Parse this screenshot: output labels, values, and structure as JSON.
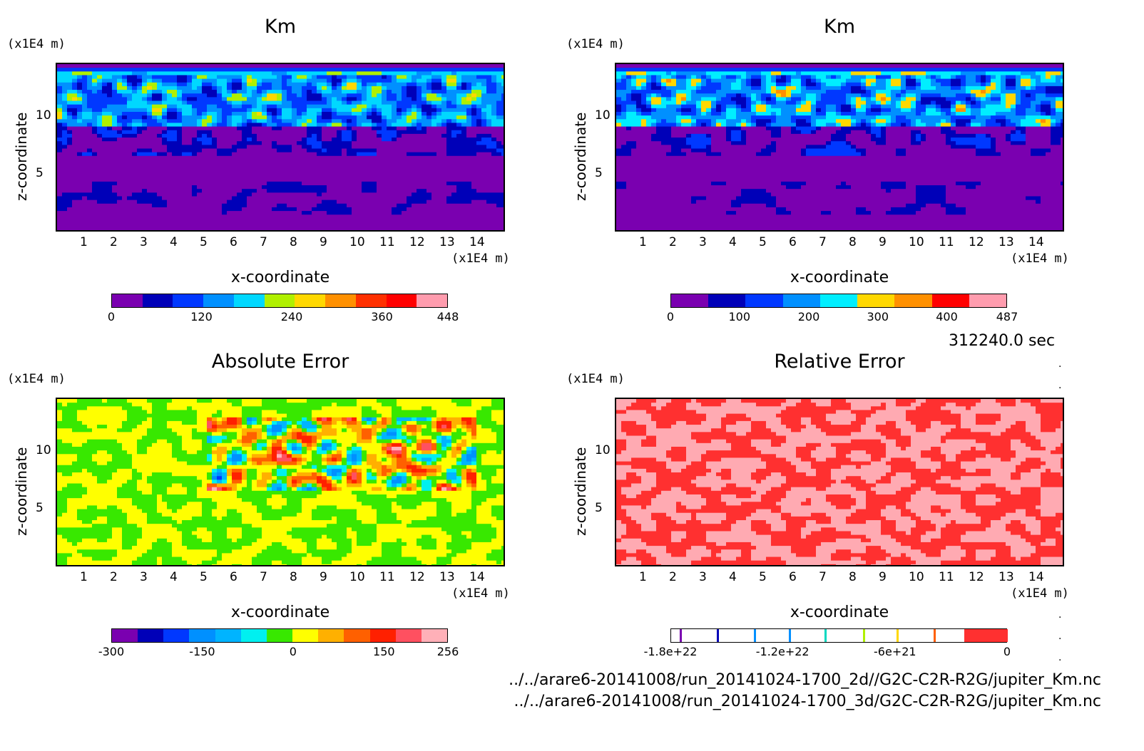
{
  "chart_data": [
    {
      "type": "heatmap",
      "title": "Km",
      "xlabel": "x-coordinate",
      "ylabel": "z-coordinate",
      "x_unit": "(x1E4 m)",
      "y_unit": "(x1E4 m)",
      "xticks": [
        "1",
        "2",
        "3",
        "4",
        "5",
        "6",
        "7",
        "8",
        "9",
        "10",
        "11",
        "12",
        "13",
        "14"
      ],
      "yticks": [
        "5",
        "10"
      ],
      "xlim": [
        0,
        15
      ],
      "ylim": [
        0,
        14.5
      ],
      "colorbar": {
        "colors": [
          "#7a00b0",
          "#0000b8",
          "#0038ff",
          "#0090ff",
          "#00d8ff",
          "#b0f000",
          "#ffd800",
          "#ff9000",
          "#ff3000",
          "#ff0000",
          "#ff9cae"
        ],
        "labels": [
          "0",
          "120",
          "240",
          "360",
          "448"
        ],
        "label_pos": [
          0,
          0.268,
          0.536,
          0.804,
          1.0
        ]
      },
      "palette": "km"
    },
    {
      "type": "heatmap",
      "title": "Km",
      "xlabel": "x-coordinate",
      "ylabel": "z-coordinate",
      "x_unit": "(x1E4 m)",
      "y_unit": "(x1E4 m)",
      "xticks": [
        "1",
        "2",
        "3",
        "4",
        "5",
        "6",
        "7",
        "8",
        "9",
        "10",
        "11",
        "12",
        "13",
        "14"
      ],
      "yticks": [
        "5",
        "10"
      ],
      "xlim": [
        0,
        15
      ],
      "ylim": [
        0,
        14.5
      ],
      "colorbar": {
        "colors": [
          "#7a00b0",
          "#0000b8",
          "#0038ff",
          "#0090ff",
          "#00eeff",
          "#ffd800",
          "#ff9000",
          "#ff0000",
          "#ff9cae"
        ],
        "labels": [
          "0",
          "100",
          "200",
          "300",
          "400",
          "487"
        ],
        "label_pos": [
          0,
          0.205,
          0.411,
          0.616,
          0.821,
          1.0
        ]
      },
      "palette": "km"
    },
    {
      "type": "heatmap",
      "title": "Absolute Error",
      "xlabel": "x-coordinate",
      "ylabel": "z-coordinate",
      "x_unit": "(x1E4 m)",
      "y_unit": "(x1E4 m)",
      "xticks": [
        "1",
        "2",
        "3",
        "4",
        "5",
        "6",
        "7",
        "8",
        "9",
        "10",
        "11",
        "12",
        "13",
        "14"
      ],
      "yticks": [
        "5",
        "10"
      ],
      "xlim": [
        0,
        15
      ],
      "ylim": [
        0,
        14.5
      ],
      "colorbar": {
        "colors": [
          "#7a00b0",
          "#0000b8",
          "#0038ff",
          "#0090ff",
          "#00b4ff",
          "#00f0f0",
          "#38e800",
          "#ffff00",
          "#ffb000",
          "#ff6000",
          "#ff2000",
          "#ff5060",
          "#ffb0b8"
        ],
        "labels": [
          "-300",
          "-150",
          "0",
          "150",
          "256"
        ],
        "label_pos": [
          0,
          0.27,
          0.54,
          0.81,
          1.0
        ]
      },
      "palette": "abs"
    },
    {
      "type": "heatmap",
      "title": "Relative Error",
      "xlabel": "x-coordinate",
      "ylabel": "z-coordinate",
      "x_unit": "(x1E4 m)",
      "y_unit": "(x1E4 m)",
      "xticks": [
        "1",
        "2",
        "3",
        "4",
        "5",
        "6",
        "7",
        "8",
        "9",
        "10",
        "11",
        "12",
        "13",
        "14"
      ],
      "yticks": [
        "5",
        "10"
      ],
      "xlim": [
        0,
        15
      ],
      "ylim": [
        0,
        14.5
      ],
      "colorbar": {
        "labels": [
          "-1.8e+22",
          "-1.2e+22",
          "-6e+21",
          "0"
        ],
        "label_pos": [
          0,
          0.333,
          0.667,
          1.0
        ]
      },
      "palette": "rel"
    }
  ],
  "timestamp": "312240.0 sec",
  "footer_lines": [
    "../../arare6-20141008/run_20141024-1700_2d//G2C-C2R-R2G/jupiter_Km.nc",
    "../../arare6-20141008/run_20141024-1700_3d/G2C-C2R-R2G/jupiter_Km.nc"
  ]
}
